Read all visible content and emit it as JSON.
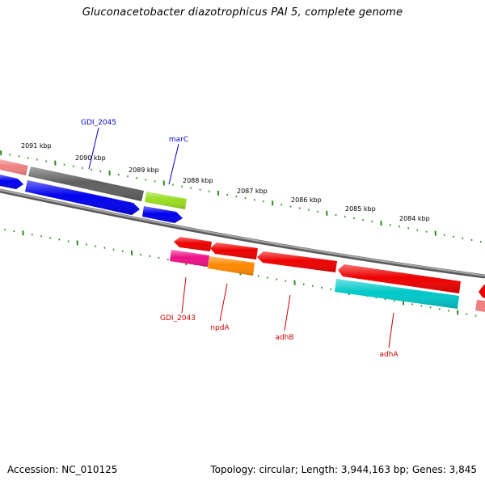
{
  "title": "Gluconacetobacter diazotrophicus PAI 5, complete genome",
  "footer": {
    "accession": "Accession: NC_010125",
    "summary": "Topology: circular; Length: 3,944,163 bp; Genes: 3,845"
  },
  "scale": {
    "tick_color": "#2e8b22",
    "labels": [
      "2091 kbp",
      "2090 kbp",
      "2089 kbp",
      "2088 kbp",
      "2087 kbp",
      "2086 kbp",
      "2085 kbp",
      "2084 kbp"
    ]
  },
  "backbone_color": "#808080",
  "features": [
    {
      "name": "GDI_2045",
      "color": "#0000ff",
      "label_color": "#0000cc"
    },
    {
      "name": "marC",
      "color": "#0000ff",
      "label_color": "#0000cc"
    },
    {
      "name": "GDI_2043",
      "color": "#ff0000",
      "label_color": "#cc0000"
    },
    {
      "name": "npdA",
      "color": "#ff0000",
      "label_color": "#cc0000"
    },
    {
      "name": "adhB",
      "color": "#ff0000",
      "label_color": "#cc0000"
    },
    {
      "name": "adhA",
      "color": "#ff0000",
      "label_color": "#cc0000"
    }
  ],
  "track_colors": {
    "salmon": "#f08080",
    "gray": "#606060",
    "blue": "#0000ee",
    "lime": "#99dd22",
    "red": "#ee0000",
    "magenta": "#ee1188",
    "orange": "#ff8800",
    "cyan": "#00c8c8"
  }
}
